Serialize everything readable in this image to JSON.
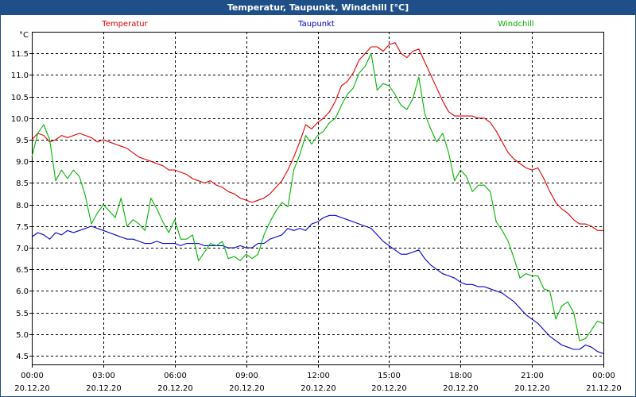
{
  "window": {
    "title": "Temperatur, Taupunkt, Windchill [°C]"
  },
  "chart_data": {
    "type": "line",
    "title": "Temperatur, Taupunkt, Windchill [°C]",
    "ylabel": "°C",
    "xlabel": "",
    "xlim": [
      0,
      24
    ],
    "ylim": [
      4.3,
      12.0
    ],
    "grid": true,
    "legend_position": "top",
    "y_ticks": [
      "11.5",
      "11.0",
      "10.5",
      "10.0",
      "9.5",
      "9.0",
      "8.5",
      "8.0",
      "7.5",
      "7.0",
      "6.5",
      "6.0",
      "5.5",
      "5.0",
      "4.5"
    ],
    "x_ticks": [
      {
        "time": "00:00",
        "date": "20.12.20",
        "x": 0
      },
      {
        "time": "03:00",
        "date": "20.12.20",
        "x": 3
      },
      {
        "time": "06:00",
        "date": "20.12.20",
        "x": 6
      },
      {
        "time": "09:00",
        "date": "20.12.20",
        "x": 9
      },
      {
        "time": "12:00",
        "date": "20.12.20",
        "x": 12
      },
      {
        "time": "15:00",
        "date": "20.12.20",
        "x": 15
      },
      {
        "time": "18:00",
        "date": "20.12.20",
        "x": 18
      },
      {
        "time": "21:00",
        "date": "20.12.20",
        "x": 21
      },
      {
        "time": "00:00",
        "date": "21.12.20",
        "x": 24
      }
    ],
    "series": [
      {
        "name": "Temperatur",
        "color": "#e00000",
        "points": [
          [
            0,
            9.5
          ],
          [
            0.25,
            9.65
          ],
          [
            0.5,
            9.6
          ],
          [
            0.75,
            9.45
          ],
          [
            1.0,
            9.5
          ],
          [
            1.25,
            9.6
          ],
          [
            1.5,
            9.55
          ],
          [
            1.75,
            9.6
          ],
          [
            2.0,
            9.65
          ],
          [
            2.25,
            9.6
          ],
          [
            2.5,
            9.55
          ],
          [
            2.75,
            9.45
          ],
          [
            3.0,
            9.5
          ],
          [
            3.25,
            9.45
          ],
          [
            3.5,
            9.4
          ],
          [
            3.75,
            9.35
          ],
          [
            4.0,
            9.3
          ],
          [
            4.25,
            9.2
          ],
          [
            4.5,
            9.1
          ],
          [
            4.75,
            9.05
          ],
          [
            5.0,
            9.0
          ],
          [
            5.25,
            8.95
          ],
          [
            5.5,
            8.9
          ],
          [
            5.75,
            8.8
          ],
          [
            6.0,
            8.8
          ],
          [
            6.25,
            8.75
          ],
          [
            6.5,
            8.7
          ],
          [
            6.75,
            8.6
          ],
          [
            7.0,
            8.55
          ],
          [
            7.25,
            8.5
          ],
          [
            7.5,
            8.55
          ],
          [
            7.75,
            8.45
          ],
          [
            8.0,
            8.4
          ],
          [
            8.25,
            8.3
          ],
          [
            8.5,
            8.25
          ],
          [
            8.75,
            8.15
          ],
          [
            9.0,
            8.1
          ],
          [
            9.25,
            8.05
          ],
          [
            9.5,
            8.1
          ],
          [
            9.75,
            8.15
          ],
          [
            10.0,
            8.25
          ],
          [
            10.25,
            8.4
          ],
          [
            10.5,
            8.55
          ],
          [
            10.75,
            8.8
          ],
          [
            11.0,
            9.1
          ],
          [
            11.25,
            9.45
          ],
          [
            11.5,
            9.85
          ],
          [
            11.75,
            9.75
          ],
          [
            12.0,
            9.9
          ],
          [
            12.25,
            10.0
          ],
          [
            12.5,
            10.15
          ],
          [
            12.75,
            10.4
          ],
          [
            13.0,
            10.75
          ],
          [
            13.25,
            10.85
          ],
          [
            13.5,
            11.05
          ],
          [
            13.75,
            11.35
          ],
          [
            14.0,
            11.5
          ],
          [
            14.25,
            11.65
          ],
          [
            14.5,
            11.65
          ],
          [
            14.75,
            11.55
          ],
          [
            15.0,
            11.7
          ],
          [
            15.25,
            11.75
          ],
          [
            15.5,
            11.5
          ],
          [
            15.75,
            11.4
          ],
          [
            16.0,
            11.55
          ],
          [
            16.25,
            11.6
          ],
          [
            16.5,
            11.3
          ],
          [
            16.75,
            11.0
          ],
          [
            17.0,
            10.7
          ],
          [
            17.25,
            10.4
          ],
          [
            17.5,
            10.15
          ],
          [
            17.75,
            10.05
          ],
          [
            18.0,
            10.05
          ],
          [
            18.25,
            10.05
          ],
          [
            18.5,
            10.05
          ],
          [
            18.75,
            10.0
          ],
          [
            19.0,
            10.0
          ],
          [
            19.25,
            9.9
          ],
          [
            19.5,
            9.7
          ],
          [
            19.75,
            9.45
          ],
          [
            20.0,
            9.2
          ],
          [
            20.25,
            9.05
          ],
          [
            20.5,
            8.95
          ],
          [
            20.75,
            8.85
          ],
          [
            21.0,
            8.8
          ],
          [
            21.25,
            8.85
          ],
          [
            21.5,
            8.6
          ],
          [
            21.75,
            8.3
          ],
          [
            22.0,
            8.05
          ],
          [
            22.25,
            7.9
          ],
          [
            22.5,
            7.8
          ],
          [
            22.75,
            7.65
          ],
          [
            23.0,
            7.55
          ],
          [
            23.25,
            7.55
          ],
          [
            23.5,
            7.5
          ],
          [
            23.75,
            7.4
          ],
          [
            24.0,
            7.4
          ]
        ]
      },
      {
        "name": "Taupunkt",
        "color": "#0000c8",
        "points": [
          [
            0,
            7.25
          ],
          [
            0.25,
            7.35
          ],
          [
            0.5,
            7.3
          ],
          [
            0.75,
            7.2
          ],
          [
            1.0,
            7.35
          ],
          [
            1.25,
            7.3
          ],
          [
            1.5,
            7.4
          ],
          [
            1.75,
            7.35
          ],
          [
            2.0,
            7.4
          ],
          [
            2.25,
            7.45
          ],
          [
            2.5,
            7.5
          ],
          [
            2.75,
            7.45
          ],
          [
            3.0,
            7.4
          ],
          [
            3.25,
            7.35
          ],
          [
            3.5,
            7.3
          ],
          [
            3.75,
            7.25
          ],
          [
            4.0,
            7.2
          ],
          [
            4.25,
            7.2
          ],
          [
            4.5,
            7.15
          ],
          [
            4.75,
            7.1
          ],
          [
            5.0,
            7.1
          ],
          [
            5.25,
            7.15
          ],
          [
            5.5,
            7.1
          ],
          [
            5.75,
            7.1
          ],
          [
            6.0,
            7.1
          ],
          [
            6.25,
            7.05
          ],
          [
            6.5,
            7.1
          ],
          [
            6.75,
            7.1
          ],
          [
            7.0,
            7.1
          ],
          [
            7.25,
            7.05
          ],
          [
            7.5,
            7.05
          ],
          [
            7.75,
            7.05
          ],
          [
            8.0,
            7.05
          ],
          [
            8.25,
            7.0
          ],
          [
            8.5,
            7.0
          ],
          [
            8.75,
            7.05
          ],
          [
            9.0,
            7.0
          ],
          [
            9.25,
            7.0
          ],
          [
            9.5,
            7.1
          ],
          [
            9.75,
            7.1
          ],
          [
            10.0,
            7.2
          ],
          [
            10.25,
            7.25
          ],
          [
            10.5,
            7.3
          ],
          [
            10.75,
            7.45
          ],
          [
            11.0,
            7.4
          ],
          [
            11.25,
            7.45
          ],
          [
            11.5,
            7.4
          ],
          [
            11.75,
            7.55
          ],
          [
            12.0,
            7.6
          ],
          [
            12.25,
            7.7
          ],
          [
            12.5,
            7.75
          ],
          [
            12.75,
            7.75
          ],
          [
            13.0,
            7.7
          ],
          [
            13.25,
            7.65
          ],
          [
            13.5,
            7.6
          ],
          [
            13.75,
            7.55
          ],
          [
            14.0,
            7.5
          ],
          [
            14.25,
            7.45
          ],
          [
            14.5,
            7.3
          ],
          [
            14.75,
            7.15
          ],
          [
            15.0,
            7.05
          ],
          [
            15.25,
            6.95
          ],
          [
            15.5,
            6.85
          ],
          [
            15.75,
            6.85
          ],
          [
            16.0,
            6.9
          ],
          [
            16.25,
            6.95
          ],
          [
            16.5,
            6.75
          ],
          [
            16.75,
            6.6
          ],
          [
            17.0,
            6.5
          ],
          [
            17.25,
            6.4
          ],
          [
            17.5,
            6.35
          ],
          [
            17.75,
            6.3
          ],
          [
            18.0,
            6.2
          ],
          [
            18.25,
            6.15
          ],
          [
            18.5,
            6.15
          ],
          [
            18.75,
            6.1
          ],
          [
            19.0,
            6.1
          ],
          [
            19.25,
            6.05
          ],
          [
            19.5,
            6.0
          ],
          [
            19.75,
            5.95
          ],
          [
            20.0,
            5.85
          ],
          [
            20.25,
            5.75
          ],
          [
            20.5,
            5.6
          ],
          [
            20.75,
            5.45
          ],
          [
            21.0,
            5.35
          ],
          [
            21.25,
            5.25
          ],
          [
            21.5,
            5.1
          ],
          [
            21.75,
            4.95
          ],
          [
            22.0,
            4.85
          ],
          [
            22.25,
            4.75
          ],
          [
            22.5,
            4.7
          ],
          [
            22.75,
            4.65
          ],
          [
            23.0,
            4.65
          ],
          [
            23.25,
            4.75
          ],
          [
            23.5,
            4.7
          ],
          [
            23.75,
            4.6
          ],
          [
            24.0,
            4.55
          ]
        ]
      },
      {
        "name": "Windchill",
        "color": "#00b400",
        "points": [
          [
            0,
            9.1
          ],
          [
            0.25,
            9.65
          ],
          [
            0.5,
            9.85
          ],
          [
            0.75,
            9.5
          ],
          [
            1.0,
            8.55
          ],
          [
            1.25,
            8.8
          ],
          [
            1.5,
            8.6
          ],
          [
            1.75,
            8.8
          ],
          [
            2.0,
            8.65
          ],
          [
            2.25,
            8.2
          ],
          [
            2.5,
            7.55
          ],
          [
            2.75,
            7.8
          ],
          [
            3.0,
            8.0
          ],
          [
            3.25,
            7.85
          ],
          [
            3.5,
            7.7
          ],
          [
            3.75,
            8.15
          ],
          [
            4.0,
            7.5
          ],
          [
            4.25,
            7.65
          ],
          [
            4.5,
            7.55
          ],
          [
            4.75,
            7.4
          ],
          [
            5.0,
            8.15
          ],
          [
            5.25,
            7.9
          ],
          [
            5.5,
            7.6
          ],
          [
            5.75,
            7.35
          ],
          [
            6.0,
            7.65
          ],
          [
            6.25,
            7.2
          ],
          [
            6.5,
            7.2
          ],
          [
            6.75,
            7.3
          ],
          [
            7.0,
            6.7
          ],
          [
            7.25,
            6.9
          ],
          [
            7.5,
            7.1
          ],
          [
            7.75,
            7.05
          ],
          [
            8.0,
            7.15
          ],
          [
            8.25,
            6.75
          ],
          [
            8.5,
            6.8
          ],
          [
            8.75,
            6.7
          ],
          [
            9.0,
            6.85
          ],
          [
            9.25,
            6.75
          ],
          [
            9.5,
            6.85
          ],
          [
            9.75,
            7.3
          ],
          [
            10.0,
            7.6
          ],
          [
            10.25,
            7.85
          ],
          [
            10.5,
            8.05
          ],
          [
            10.75,
            7.95
          ],
          [
            11.0,
            8.8
          ],
          [
            11.25,
            9.15
          ],
          [
            11.5,
            9.6
          ],
          [
            11.75,
            9.4
          ],
          [
            12.0,
            9.6
          ],
          [
            12.25,
            9.7
          ],
          [
            12.5,
            9.9
          ],
          [
            12.75,
            10.0
          ],
          [
            13.0,
            10.3
          ],
          [
            13.25,
            10.55
          ],
          [
            13.5,
            10.7
          ],
          [
            13.75,
            11.05
          ],
          [
            14.0,
            11.2
          ],
          [
            14.25,
            11.5
          ],
          [
            14.5,
            10.65
          ],
          [
            14.75,
            10.8
          ],
          [
            15.0,
            10.75
          ],
          [
            15.25,
            10.55
          ],
          [
            15.5,
            10.3
          ],
          [
            15.75,
            10.2
          ],
          [
            16.0,
            10.45
          ],
          [
            16.25,
            10.95
          ],
          [
            16.5,
            10.1
          ],
          [
            16.75,
            9.75
          ],
          [
            17.0,
            9.45
          ],
          [
            17.25,
            9.65
          ],
          [
            17.5,
            9.2
          ],
          [
            17.75,
            8.55
          ],
          [
            18.0,
            8.8
          ],
          [
            18.25,
            8.65
          ],
          [
            18.5,
            8.3
          ],
          [
            18.75,
            8.45
          ],
          [
            19.0,
            8.45
          ],
          [
            19.25,
            8.3
          ],
          [
            19.5,
            7.6
          ],
          [
            19.75,
            7.4
          ],
          [
            20.0,
            7.15
          ],
          [
            20.25,
            6.75
          ],
          [
            20.5,
            6.3
          ],
          [
            20.75,
            6.4
          ],
          [
            21.0,
            6.35
          ],
          [
            21.25,
            6.35
          ],
          [
            21.5,
            6.05
          ],
          [
            21.75,
            6.0
          ],
          [
            22.0,
            5.35
          ],
          [
            22.25,
            5.65
          ],
          [
            22.5,
            5.75
          ],
          [
            22.75,
            5.5
          ],
          [
            23.0,
            4.85
          ],
          [
            23.25,
            4.9
          ],
          [
            23.5,
            5.1
          ],
          [
            23.75,
            5.3
          ],
          [
            24.0,
            5.25
          ]
        ]
      }
    ]
  }
}
